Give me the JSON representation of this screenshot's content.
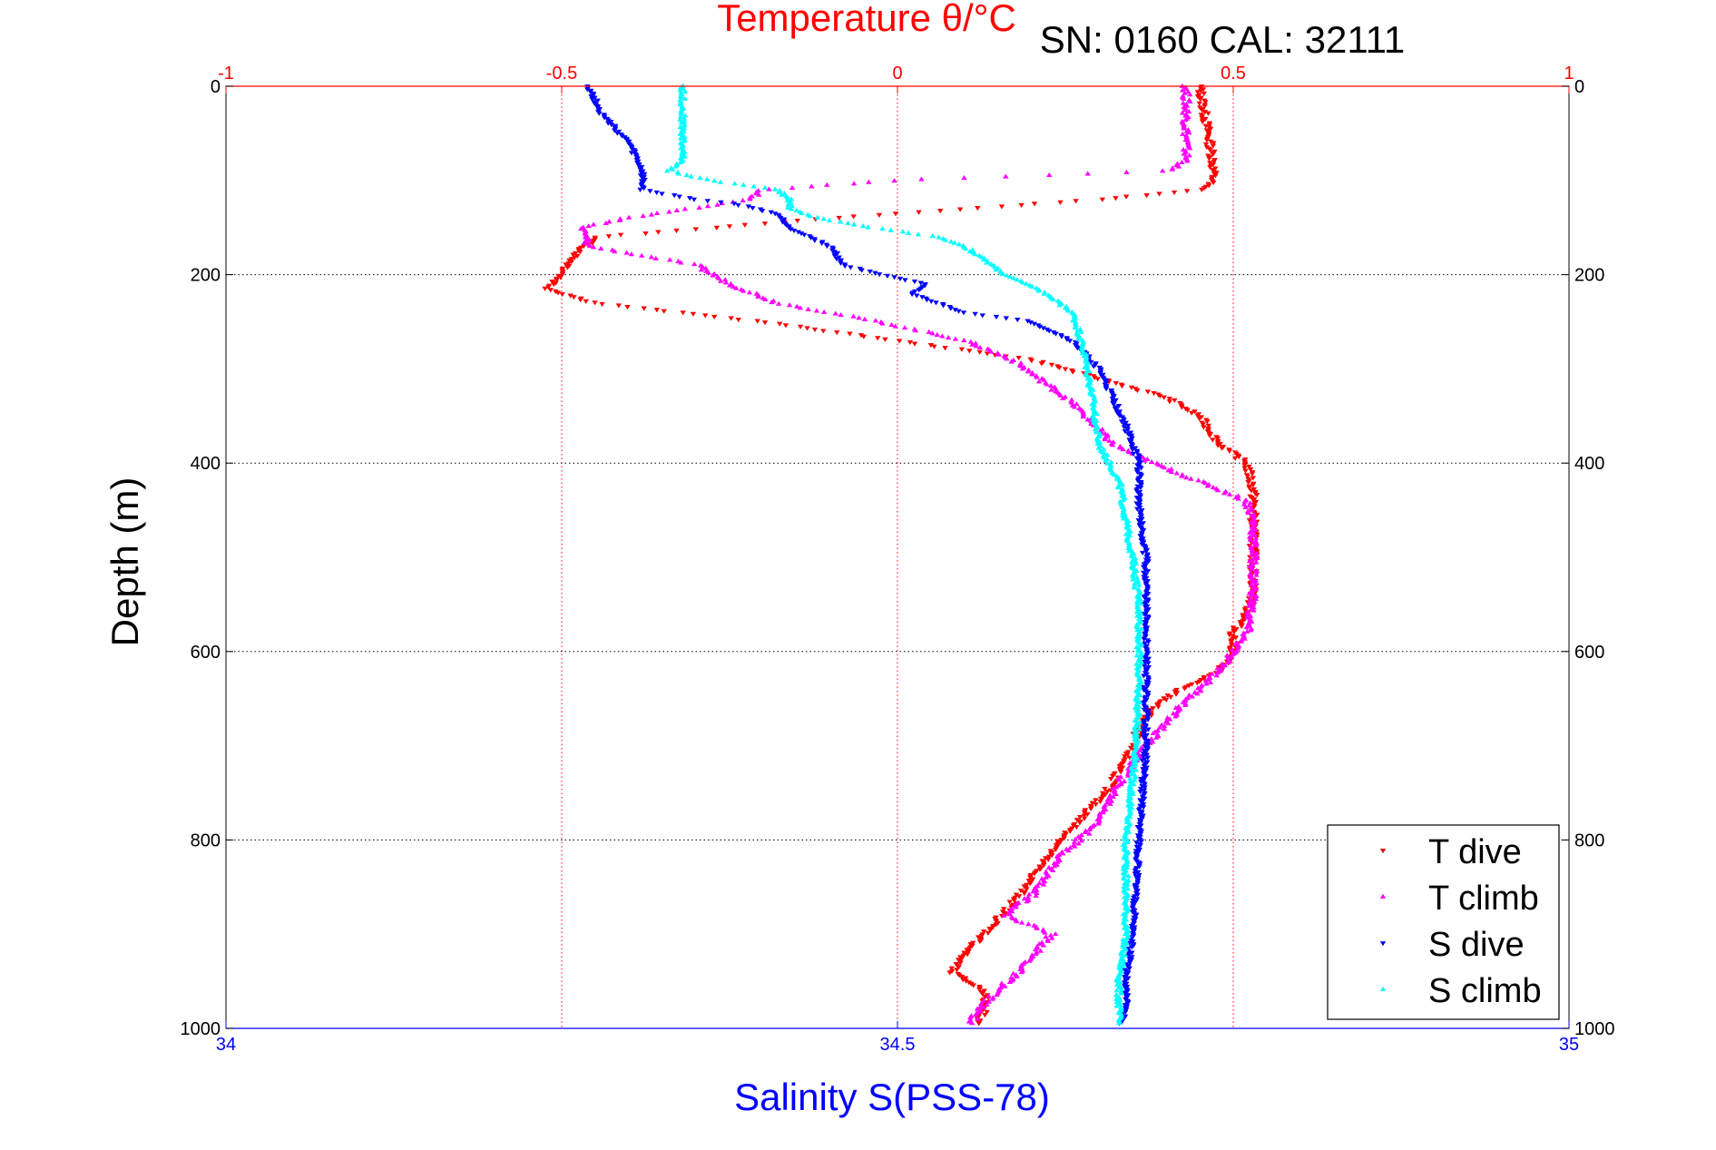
{
  "chart_data": {
    "type": "scatter",
    "title": "Temperature θ/°C",
    "annotation": "SN: 0160  CAL: 32111",
    "ylabel": "Depth (m)",
    "top_xlabel": "Temperature θ/°C",
    "bottom_xlabel": "Salinity S(PSS-78)",
    "top_xlim": [
      -1,
      1
    ],
    "bottom_xlim": [
      34,
      35
    ],
    "ylim": [
      0,
      1000
    ],
    "y_reversed": true,
    "top_ticks": [
      "-1",
      "-0.5",
      "0",
      "0.5",
      "1"
    ],
    "bottom_ticks": [
      "34",
      "34.5",
      "35"
    ],
    "y_ticks": [
      "0",
      "200",
      "400",
      "600",
      "800",
      "1000"
    ],
    "grid": true,
    "legend_position": "bottom-right",
    "colors": {
      "temperature_axis": "#ff0000",
      "salinity_axis": "#0000ff",
      "t_dive": "#ff0000",
      "t_climb": "#ff00ff",
      "s_dive": "#0000ff",
      "s_climb": "#00ffff"
    },
    "series": [
      {
        "name": "T dive",
        "axis": "top",
        "color": "#ff0000",
        "marker": "triangle-down",
        "depth": [
          0,
          40,
          80,
          100,
          110,
          120,
          140,
          160,
          180,
          200,
          215,
          230,
          250,
          270,
          290,
          310,
          330,
          350,
          380,
          400,
          430,
          460,
          500,
          540,
          560,
          580,
          600,
          620,
          640,
          660,
          680,
          700,
          740,
          780,
          820,
          860,
          900,
          920,
          940,
          960,
          980,
          995
        ],
        "values": [
          0.45,
          0.46,
          0.47,
          0.47,
          0.45,
          0.3,
          -0.1,
          -0.45,
          -0.48,
          -0.5,
          -0.52,
          -0.45,
          -0.2,
          0.0,
          0.2,
          0.3,
          0.4,
          0.45,
          0.48,
          0.52,
          0.53,
          0.53,
          0.53,
          0.53,
          0.52,
          0.5,
          0.5,
          0.48,
          0.42,
          0.38,
          0.36,
          0.35,
          0.32,
          0.27,
          0.22,
          0.18,
          0.13,
          0.1,
          0.08,
          0.13,
          0.13,
          0.12
        ]
      },
      {
        "name": "T climb",
        "axis": "top",
        "color": "#ff00ff",
        "marker": "triangle-up",
        "depth": [
          0,
          40,
          80,
          90,
          100,
          110,
          120,
          140,
          150,
          170,
          190,
          210,
          230,
          250,
          270,
          290,
          310,
          330,
          350,
          380,
          400,
          420,
          440,
          460,
          500,
          540,
          580,
          600,
          620,
          660,
          700,
          740,
          780,
          820,
          860,
          880,
          900,
          940,
          980,
          995
        ],
        "values": [
          0.43,
          0.43,
          0.43,
          0.4,
          0.0,
          -0.2,
          -0.22,
          -0.4,
          -0.47,
          -0.46,
          -0.3,
          -0.25,
          -0.18,
          -0.03,
          0.1,
          0.17,
          0.21,
          0.25,
          0.28,
          0.32,
          0.38,
          0.45,
          0.52,
          0.53,
          0.53,
          0.53,
          0.52,
          0.5,
          0.48,
          0.42,
          0.37,
          0.33,
          0.3,
          0.24,
          0.2,
          0.16,
          0.23,
          0.18,
          0.12,
          0.11
        ]
      },
      {
        "name": "S dive",
        "axis": "bottom",
        "color": "#0000ff",
        "marker": "triangle-down",
        "depth": [
          0,
          30,
          60,
          90,
          110,
          120,
          125,
          135,
          150,
          170,
          190,
          200,
          210,
          220,
          230,
          240,
          250,
          270,
          300,
          330,
          360,
          400,
          450,
          500,
          550,
          600,
          700,
          800,
          900,
          950,
          980,
          995
        ],
        "values": [
          34.27,
          34.28,
          34.3,
          34.31,
          34.31,
          34.35,
          34.38,
          34.41,
          34.42,
          34.45,
          34.46,
          34.49,
          34.52,
          34.51,
          34.53,
          34.55,
          34.6,
          34.63,
          34.65,
          34.66,
          34.67,
          34.68,
          34.68,
          34.685,
          34.685,
          34.685,
          34.685,
          34.68,
          34.675,
          34.67,
          34.67,
          34.665
        ]
      },
      {
        "name": "S climb",
        "axis": "bottom",
        "color": "#00ffff",
        "marker": "triangle-up",
        "depth": [
          0,
          40,
          80,
          90,
          100,
          110,
          120,
          130,
          140,
          150,
          160,
          170,
          180,
          190,
          200,
          220,
          240,
          260,
          290,
          330,
          380,
          420,
          460,
          500,
          550,
          600,
          700,
          800,
          900,
          950,
          980,
          995
        ],
        "values": [
          34.34,
          34.34,
          34.34,
          34.33,
          34.36,
          34.41,
          34.42,
          34.42,
          34.44,
          34.48,
          34.53,
          34.55,
          34.56,
          34.57,
          34.58,
          34.61,
          34.63,
          34.635,
          34.64,
          34.645,
          34.65,
          34.665,
          34.67,
          34.675,
          34.68,
          34.68,
          34.678,
          34.67,
          34.67,
          34.665,
          34.665,
          34.665
        ]
      }
    ]
  }
}
